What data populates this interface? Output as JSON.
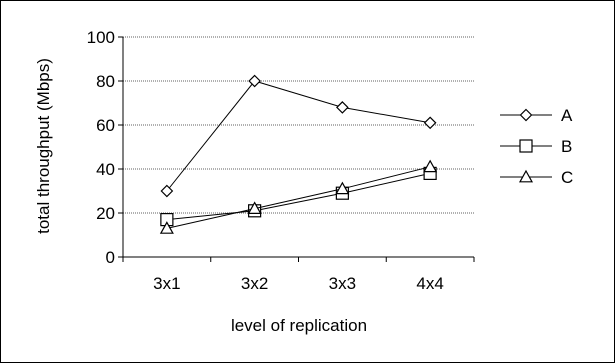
{
  "chart_data": {
    "type": "line",
    "title": "",
    "xlabel": "level of replication",
    "ylabel": "total throughput (Mbps)",
    "categories": [
      "3x1",
      "3x2",
      "3x3",
      "4x4"
    ],
    "ylim": [
      0,
      100
    ],
    "yticks": [
      "0",
      "20",
      "40",
      "60",
      "80",
      "100"
    ],
    "grid": true,
    "legend_position": "right",
    "series": [
      {
        "name": "A",
        "marker": "diamond",
        "values": [
          30,
          80,
          68,
          61
        ]
      },
      {
        "name": "B",
        "marker": "square",
        "values": [
          17,
          21,
          29,
          38
        ]
      },
      {
        "name": "C",
        "marker": "triangle",
        "values": [
          13,
          22,
          31,
          41
        ]
      }
    ],
    "colors": {
      "line": "#000000",
      "grid": "#808080",
      "marker_fill": "#ffffff"
    }
  }
}
